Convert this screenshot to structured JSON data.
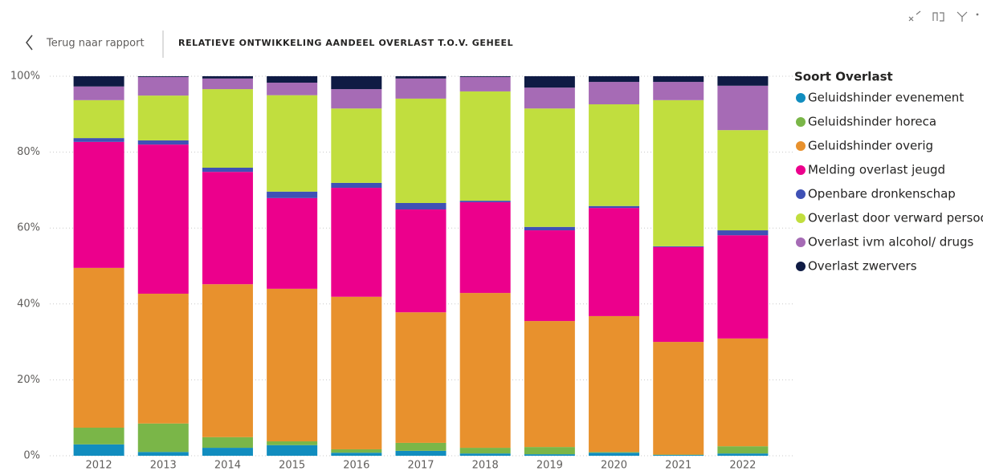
{
  "header": {
    "back": "Terug naar rapport"
  },
  "chart_data": {
    "type": "stacked_bar",
    "title": "RELATIEVE ONTWIKKELING AANDEEL OVERLAST T.O.V. GEHEEL",
    "legend_title": "Soort Overlast",
    "legend": "right",
    "grid": true,
    "categories": [
      "2012",
      "2013",
      "2014",
      "2015",
      "2016",
      "2017",
      "2018",
      "2019",
      "2020",
      "2021",
      "2022"
    ],
    "ylim": [
      0,
      100
    ],
    "yticks": [
      {
        "value": 0,
        "label": "0%"
      },
      {
        "value": 20,
        "label": "20%"
      },
      {
        "value": 40,
        "label": "40%"
      },
      {
        "value": 60,
        "label": "60%"
      },
      {
        "value": 80,
        "label": "80%"
      },
      {
        "value": 100,
        "label": "100%"
      }
    ],
    "series": [
      {
        "name": "Geluidshinder evenement",
        "color": "#118DBF",
        "values": [
          3.0,
          1.0,
          2.1,
          2.8,
          0.8,
          1.3,
          0.6,
          0.4,
          0.8,
          0.2,
          0.6
        ]
      },
      {
        "name": "Geluidshinder horeca",
        "color": "#7AB648",
        "values": [
          4.4,
          7.5,
          2.8,
          1.0,
          0.9,
          2.1,
          1.5,
          1.9,
          0.2,
          0.1,
          1.9
        ]
      },
      {
        "name": "Geluidshinder overig",
        "color": "#E8912D",
        "values": [
          42.1,
          34.2,
          40.3,
          40.2,
          40.2,
          34.4,
          40.8,
          33.2,
          35.8,
          29.7,
          28.4
        ]
      },
      {
        "name": "Melding overlast jeugd",
        "color": "#EC008C",
        "values": [
          33.2,
          39.3,
          29.6,
          23.9,
          28.7,
          27.1,
          23.9,
          23.9,
          28.5,
          25.0,
          27.2
        ]
      },
      {
        "name": "Openbare dronkenschap",
        "color": "#3F51B5",
        "values": [
          1.0,
          1.1,
          1.1,
          1.7,
          1.3,
          1.7,
          0.4,
          0.9,
          0.5,
          0.2,
          1.3
        ]
      },
      {
        "name": "Overlast door verward persoon",
        "color": "#C1DE3E",
        "values": [
          10.0,
          11.8,
          20.7,
          25.4,
          19.6,
          27.5,
          28.8,
          31.2,
          26.8,
          38.5,
          26.4
        ]
      },
      {
        "name": "Overlast ivm alcohol/ drugs",
        "color": "#A66BB5",
        "values": [
          3.6,
          4.9,
          2.8,
          3.3,
          5.1,
          5.3,
          3.8,
          5.5,
          5.9,
          4.8,
          11.7
        ]
      },
      {
        "name": "Overlast zwervers",
        "color": "#0F1B44",
        "values": [
          2.7,
          0.2,
          0.6,
          1.7,
          3.4,
          0.6,
          0.2,
          3.0,
          1.5,
          1.5,
          2.5
        ]
      }
    ]
  }
}
